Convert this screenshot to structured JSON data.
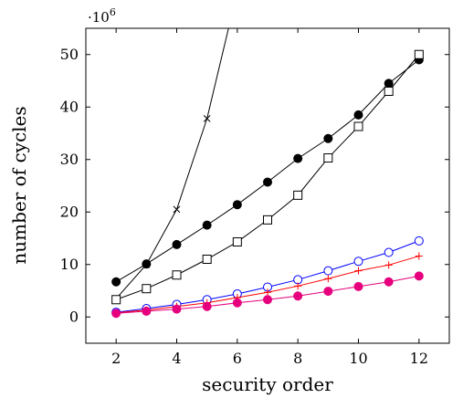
{
  "chart_data": {
    "type": "line",
    "title": "",
    "xlabel": "security order",
    "ylabel": "number of cycles",
    "y_scale_label": "·10",
    "y_scale_exponent": "6",
    "xlim": [
      1,
      13
    ],
    "ylim": [
      -5,
      55
    ],
    "xticks": [
      2,
      4,
      6,
      8,
      10,
      12
    ],
    "yticks": [
      0,
      10,
      20,
      30,
      40,
      50
    ],
    "grid": false,
    "legend": "none",
    "series": [
      {
        "color": "#000000",
        "marker": "x",
        "x": [
          2,
          3,
          4,
          5,
          6
        ],
        "y": [
          3.5,
          10.0,
          20.5,
          37.8,
          62.0
        ]
      },
      {
        "color": "#000000",
        "marker": "filled-circle",
        "x": [
          2,
          3,
          4,
          5,
          6,
          7,
          8,
          9,
          10,
          11,
          12
        ],
        "y": [
          6.7,
          10.1,
          13.8,
          17.5,
          21.4,
          25.7,
          30.2,
          34.0,
          38.5,
          44.5,
          49.0
        ]
      },
      {
        "color": "#000000",
        "marker": "open-square",
        "x": [
          2,
          3,
          4,
          5,
          6,
          7,
          8,
          9,
          10,
          11,
          12
        ],
        "y": [
          3.3,
          5.4,
          8.0,
          11.0,
          14.3,
          18.5,
          23.2,
          30.3,
          36.3,
          43.0,
          50.0
        ]
      },
      {
        "color": "#0000ff",
        "marker": "open-circle",
        "x": [
          2,
          3,
          4,
          5,
          6,
          7,
          8,
          9,
          10,
          11,
          12
        ],
        "y": [
          0.9,
          1.6,
          2.4,
          3.3,
          4.4,
          5.7,
          7.1,
          8.8,
          10.6,
          12.3,
          14.5
        ]
      },
      {
        "color": "#ff0000",
        "marker": "plus",
        "x": [
          2,
          3,
          4,
          5,
          6,
          7,
          8,
          9,
          10,
          11,
          12
        ],
        "y": [
          0.8,
          1.3,
          2.0,
          2.7,
          3.7,
          4.7,
          5.9,
          7.3,
          8.8,
          9.9,
          11.6
        ]
      },
      {
        "color": "#e6007e",
        "marker": "filled-circle",
        "x": [
          2,
          3,
          4,
          5,
          6,
          7,
          8,
          9,
          10,
          11,
          12
        ],
        "y": [
          0.7,
          1.1,
          1.5,
          2.0,
          2.7,
          3.3,
          4.0,
          4.9,
          5.8,
          6.7,
          7.8
        ]
      }
    ]
  }
}
